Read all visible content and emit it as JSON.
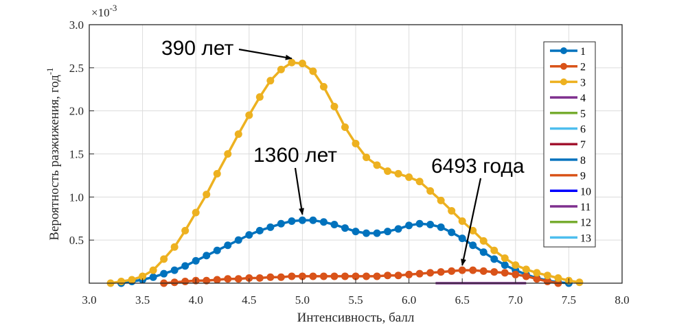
{
  "chart_data": {
    "type": "line",
    "title": "",
    "xlabel": "Интенсивность, балл",
    "ylabel": "Вероятность разжижения, год",
    "ylabel_superscript": "-1",
    "y_multiplier_base": "×10",
    "y_multiplier_exp": "-3",
    "xlim": [
      3.0,
      8.0
    ],
    "ylim": [
      0,
      3.0
    ],
    "y_unit_scale": 0.001,
    "grid": true,
    "legend_position": "top-right",
    "x_ticks": [
      "3.0",
      "3.5",
      "4.0",
      "4.5",
      "5.0",
      "5.5",
      "6.0",
      "6.5",
      "7.0",
      "7.5",
      "8.0"
    ],
    "y_ticks": [
      "0.5",
      "1.0",
      "1.5",
      "2.0",
      "2.5",
      "3.0"
    ],
    "series": [
      {
        "name": "1",
        "color": "#0072BD",
        "markers": true,
        "x": [
          3.3,
          3.4,
          3.5,
          3.6,
          3.7,
          3.8,
          3.9,
          4.0,
          4.1,
          4.2,
          4.3,
          4.4,
          4.5,
          4.6,
          4.7,
          4.8,
          4.9,
          5.0,
          5.1,
          5.2,
          5.3,
          5.4,
          5.5,
          5.6,
          5.7,
          5.8,
          5.9,
          6.0,
          6.1,
          6.2,
          6.3,
          6.4,
          6.5,
          6.6,
          6.7,
          6.8,
          6.9,
          7.0,
          7.1,
          7.2,
          7.3,
          7.4,
          7.5
        ],
        "y": [
          0.0,
          0.02,
          0.04,
          0.07,
          0.11,
          0.15,
          0.2,
          0.26,
          0.32,
          0.38,
          0.44,
          0.5,
          0.56,
          0.61,
          0.65,
          0.69,
          0.72,
          0.73,
          0.73,
          0.71,
          0.68,
          0.64,
          0.6,
          0.58,
          0.58,
          0.6,
          0.63,
          0.67,
          0.69,
          0.68,
          0.65,
          0.59,
          0.52,
          0.44,
          0.36,
          0.28,
          0.21,
          0.15,
          0.1,
          0.06,
          0.03,
          0.01,
          0.0
        ]
      },
      {
        "name": "2",
        "color": "#D95319",
        "markers": true,
        "x": [
          3.7,
          3.8,
          3.9,
          4.0,
          4.1,
          4.2,
          4.3,
          4.4,
          4.5,
          4.6,
          4.7,
          4.8,
          4.9,
          5.0,
          5.1,
          5.2,
          5.3,
          5.4,
          5.5,
          5.6,
          5.7,
          5.8,
          5.9,
          6.0,
          6.1,
          6.2,
          6.3,
          6.4,
          6.5,
          6.6,
          6.7,
          6.8,
          6.9,
          7.0,
          7.1,
          7.2,
          7.3,
          7.4
        ],
        "y": [
          0.0,
          0.01,
          0.02,
          0.03,
          0.03,
          0.04,
          0.05,
          0.05,
          0.06,
          0.06,
          0.07,
          0.07,
          0.08,
          0.08,
          0.08,
          0.08,
          0.08,
          0.08,
          0.08,
          0.08,
          0.08,
          0.09,
          0.09,
          0.1,
          0.11,
          0.12,
          0.13,
          0.14,
          0.15,
          0.15,
          0.14,
          0.13,
          0.12,
          0.1,
          0.08,
          0.05,
          0.02,
          0.0
        ]
      },
      {
        "name": "3",
        "color": "#EDB120",
        "markers": true,
        "x": [
          3.2,
          3.3,
          3.4,
          3.5,
          3.6,
          3.7,
          3.8,
          3.9,
          4.0,
          4.1,
          4.2,
          4.3,
          4.4,
          4.5,
          4.6,
          4.7,
          4.8,
          4.9,
          5.0,
          5.1,
          5.2,
          5.3,
          5.4,
          5.5,
          5.6,
          5.7,
          5.8,
          5.9,
          6.0,
          6.1,
          6.2,
          6.3,
          6.4,
          6.5,
          6.6,
          6.7,
          6.8,
          6.9,
          7.0,
          7.1,
          7.2,
          7.3,
          7.4,
          7.5,
          7.6
        ],
        "y": [
          0.0,
          0.02,
          0.04,
          0.08,
          0.15,
          0.28,
          0.42,
          0.61,
          0.82,
          1.03,
          1.27,
          1.5,
          1.73,
          1.95,
          2.16,
          2.35,
          2.48,
          2.56,
          2.55,
          2.46,
          2.28,
          2.05,
          1.81,
          1.62,
          1.46,
          1.37,
          1.3,
          1.27,
          1.23,
          1.18,
          1.07,
          0.96,
          0.84,
          0.72,
          0.61,
          0.49,
          0.38,
          0.29,
          0.21,
          0.16,
          0.12,
          0.09,
          0.06,
          0.03,
          0.01
        ]
      },
      {
        "name": "4",
        "color": "#7E2F8E",
        "markers": false,
        "x": [
          6.25,
          7.1
        ],
        "y": [
          0.0,
          0.0
        ]
      },
      {
        "name": "5",
        "color": "#77AC30",
        "markers": false,
        "x": [],
        "y": []
      },
      {
        "name": "6",
        "color": "#4DBEEE",
        "markers": false,
        "x": [],
        "y": []
      },
      {
        "name": "7",
        "color": "#A2142F",
        "markers": false,
        "x": [],
        "y": []
      },
      {
        "name": "8",
        "color": "#0072BD",
        "markers": false,
        "x": [],
        "y": []
      },
      {
        "name": "9",
        "color": "#D95319",
        "markers": false,
        "x": [],
        "y": []
      },
      {
        "name": "10",
        "color": "#0000FF",
        "markers": false,
        "x": [],
        "y": []
      },
      {
        "name": "11",
        "color": "#7E2F8E",
        "markers": false,
        "x": [],
        "y": []
      },
      {
        "name": "12",
        "color": "#77AC30",
        "markers": false,
        "x": [],
        "y": []
      },
      {
        "name": "13",
        "color": "#4DBEEE",
        "markers": false,
        "x": [],
        "y": []
      }
    ],
    "annotations": [
      {
        "text": "390 лет",
        "target_x": 4.9,
        "target_y": 2.56
      },
      {
        "text": "1360 лет",
        "target_x": 5.0,
        "target_y": 0.75
      },
      {
        "text": "6493 года",
        "target_x": 6.5,
        "target_y": 0.16
      }
    ]
  }
}
